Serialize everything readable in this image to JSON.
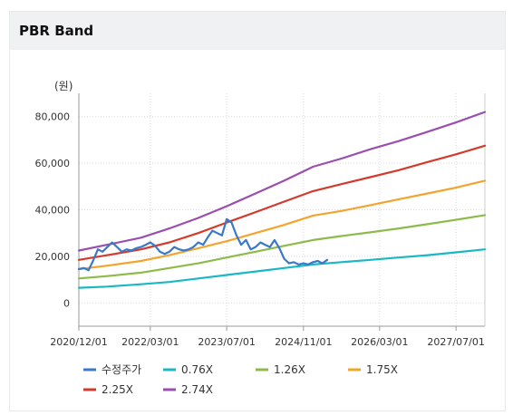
{
  "panel": {
    "title": "PBR Band"
  },
  "chart_data": {
    "type": "line",
    "unit_label": "(원)",
    "y_ticks": [
      "80,000",
      "60,000",
      "40,000",
      "20,000",
      "0"
    ],
    "y_tick_values": [
      80000,
      60000,
      40000,
      20000,
      0
    ],
    "ylim": [
      -10000,
      90000
    ],
    "x_ticks": [
      "2020/12/01",
      "2022/03/01",
      "2023/07/01",
      "2024/11/01",
      "2026/03/01",
      "2027/07/01"
    ],
    "x_tick_values": [
      "2020-12-01",
      "2022-03-01",
      "2023-07-01",
      "2024-11-01",
      "2026-03-01",
      "2027-07-01"
    ],
    "xlim": [
      "2020-12-01",
      "2028-01-01"
    ],
    "grid": true,
    "legend_position": "bottom",
    "series": [
      {
        "name": "수정주가",
        "color": "#3a78c8",
        "points": [
          [
            "2020-12-01",
            14500
          ],
          [
            "2021-01-01",
            15000
          ],
          [
            "2021-02-01",
            14000
          ],
          [
            "2021-03-01",
            18000
          ],
          [
            "2021-04-01",
            23000
          ],
          [
            "2021-05-01",
            22000
          ],
          [
            "2021-06-01",
            24000
          ],
          [
            "2021-07-01",
            26000
          ],
          [
            "2021-08-01",
            24000
          ],
          [
            "2021-09-01",
            22000
          ],
          [
            "2021-10-01",
            23000
          ],
          [
            "2021-11-01",
            22500
          ],
          [
            "2021-12-01",
            23500
          ],
          [
            "2022-01-01",
            24000
          ],
          [
            "2022-02-01",
            25000
          ],
          [
            "2022-03-01",
            26000
          ],
          [
            "2022-04-01",
            24500
          ],
          [
            "2022-05-01",
            22000
          ],
          [
            "2022-06-01",
            21000
          ],
          [
            "2022-07-01",
            22000
          ],
          [
            "2022-08-01",
            24000
          ],
          [
            "2022-09-01",
            23000
          ],
          [
            "2022-10-01",
            22500
          ],
          [
            "2022-11-01",
            23000
          ],
          [
            "2022-12-01",
            24000
          ],
          [
            "2023-01-01",
            26000
          ],
          [
            "2023-02-01",
            25000
          ],
          [
            "2023-03-01",
            28000
          ],
          [
            "2023-04-01",
            31000
          ],
          [
            "2023-05-01",
            30000
          ],
          [
            "2023-06-01",
            29000
          ],
          [
            "2023-07-01",
            36000
          ],
          [
            "2023-08-01",
            34500
          ],
          [
            "2023-09-01",
            29000
          ],
          [
            "2023-10-01",
            25000
          ],
          [
            "2023-11-01",
            27000
          ],
          [
            "2023-12-01",
            23000
          ],
          [
            "2024-01-01",
            24000
          ],
          [
            "2024-02-01",
            26000
          ],
          [
            "2024-03-01",
            25000
          ],
          [
            "2024-04-01",
            24000
          ],
          [
            "2024-05-01",
            27000
          ],
          [
            "2024-06-01",
            23500
          ],
          [
            "2024-07-01",
            19000
          ],
          [
            "2024-08-01",
            17000
          ],
          [
            "2024-09-01",
            17500
          ],
          [
            "2024-10-01",
            16500
          ],
          [
            "2024-11-01",
            17000
          ],
          [
            "2024-12-01",
            16500
          ],
          [
            "2025-01-01",
            17500
          ],
          [
            "2025-02-01",
            18000
          ],
          [
            "2025-03-01",
            17000
          ],
          [
            "2025-04-01",
            18500
          ]
        ]
      },
      {
        "name": "0.76X",
        "color": "#1ab8c4",
        "points": [
          [
            "2020-12-01",
            6500
          ],
          [
            "2021-06-01",
            7000
          ],
          [
            "2022-01-01",
            8000
          ],
          [
            "2022-07-01",
            9000
          ],
          [
            "2023-01-01",
            10500
          ],
          [
            "2023-07-01",
            12000
          ],
          [
            "2024-01-01",
            13500
          ],
          [
            "2024-07-01",
            15000
          ],
          [
            "2025-01-01",
            16500
          ],
          [
            "2025-07-01",
            17500
          ],
          [
            "2026-01-01",
            18500
          ],
          [
            "2026-07-01",
            19500
          ],
          [
            "2027-01-01",
            20500
          ],
          [
            "2027-07-01",
            21700
          ],
          [
            "2028-01-01",
            23000
          ]
        ]
      },
      {
        "name": "1.26X",
        "color": "#8dbb4a",
        "points": [
          [
            "2020-12-01",
            10500
          ],
          [
            "2021-06-01",
            11500
          ],
          [
            "2022-01-01",
            13000
          ],
          [
            "2022-07-01",
            15000
          ],
          [
            "2023-01-01",
            17000
          ],
          [
            "2023-07-01",
            19500
          ],
          [
            "2024-01-01",
            22000
          ],
          [
            "2024-07-01",
            24500
          ],
          [
            "2025-01-01",
            27000
          ],
          [
            "2025-07-01",
            28700
          ],
          [
            "2026-01-01",
            30300
          ],
          [
            "2026-07-01",
            32000
          ],
          [
            "2027-01-01",
            33800
          ],
          [
            "2027-07-01",
            35700
          ],
          [
            "2028-01-01",
            37700
          ]
        ]
      },
      {
        "name": "1.75X",
        "color": "#f3a42e",
        "points": [
          [
            "2020-12-01",
            14500
          ],
          [
            "2021-06-01",
            16000
          ],
          [
            "2022-01-01",
            18000
          ],
          [
            "2022-07-01",
            20500
          ],
          [
            "2023-01-01",
            23500
          ],
          [
            "2023-07-01",
            26500
          ],
          [
            "2024-01-01",
            30000
          ],
          [
            "2024-07-01",
            33500
          ],
          [
            "2025-01-01",
            37500
          ],
          [
            "2025-07-01",
            39500
          ],
          [
            "2026-01-01",
            42000
          ],
          [
            "2026-07-01",
            44500
          ],
          [
            "2027-01-01",
            47000
          ],
          [
            "2027-07-01",
            49500
          ],
          [
            "2028-01-01",
            52500
          ]
        ]
      },
      {
        "name": "2.25X",
        "color": "#d43a2c",
        "points": [
          [
            "2020-12-01",
            18500
          ],
          [
            "2021-06-01",
            20500
          ],
          [
            "2022-01-01",
            23000
          ],
          [
            "2022-07-01",
            26000
          ],
          [
            "2023-01-01",
            30000
          ],
          [
            "2023-07-01",
            34500
          ],
          [
            "2024-01-01",
            39000
          ],
          [
            "2024-07-01",
            43500
          ],
          [
            "2025-01-01",
            48000
          ],
          [
            "2025-07-01",
            51000
          ],
          [
            "2026-01-01",
            54000
          ],
          [
            "2026-07-01",
            57000
          ],
          [
            "2027-01-01",
            60500
          ],
          [
            "2027-07-01",
            63800
          ],
          [
            "2028-01-01",
            67500
          ]
        ]
      },
      {
        "name": "2.74X",
        "color": "#9a4fae",
        "points": [
          [
            "2020-12-01",
            22500
          ],
          [
            "2021-06-01",
            25000
          ],
          [
            "2022-01-01",
            28000
          ],
          [
            "2022-07-01",
            32000
          ],
          [
            "2023-01-01",
            36500
          ],
          [
            "2023-07-01",
            41500
          ],
          [
            "2024-01-01",
            47000
          ],
          [
            "2024-07-01",
            52500
          ],
          [
            "2025-01-01",
            58500
          ],
          [
            "2025-07-01",
            62000
          ],
          [
            "2026-01-01",
            66000
          ],
          [
            "2026-07-01",
            69500
          ],
          [
            "2027-01-01",
            73500
          ],
          [
            "2027-07-01",
            77500
          ],
          [
            "2028-01-01",
            82000
          ]
        ]
      }
    ]
  }
}
